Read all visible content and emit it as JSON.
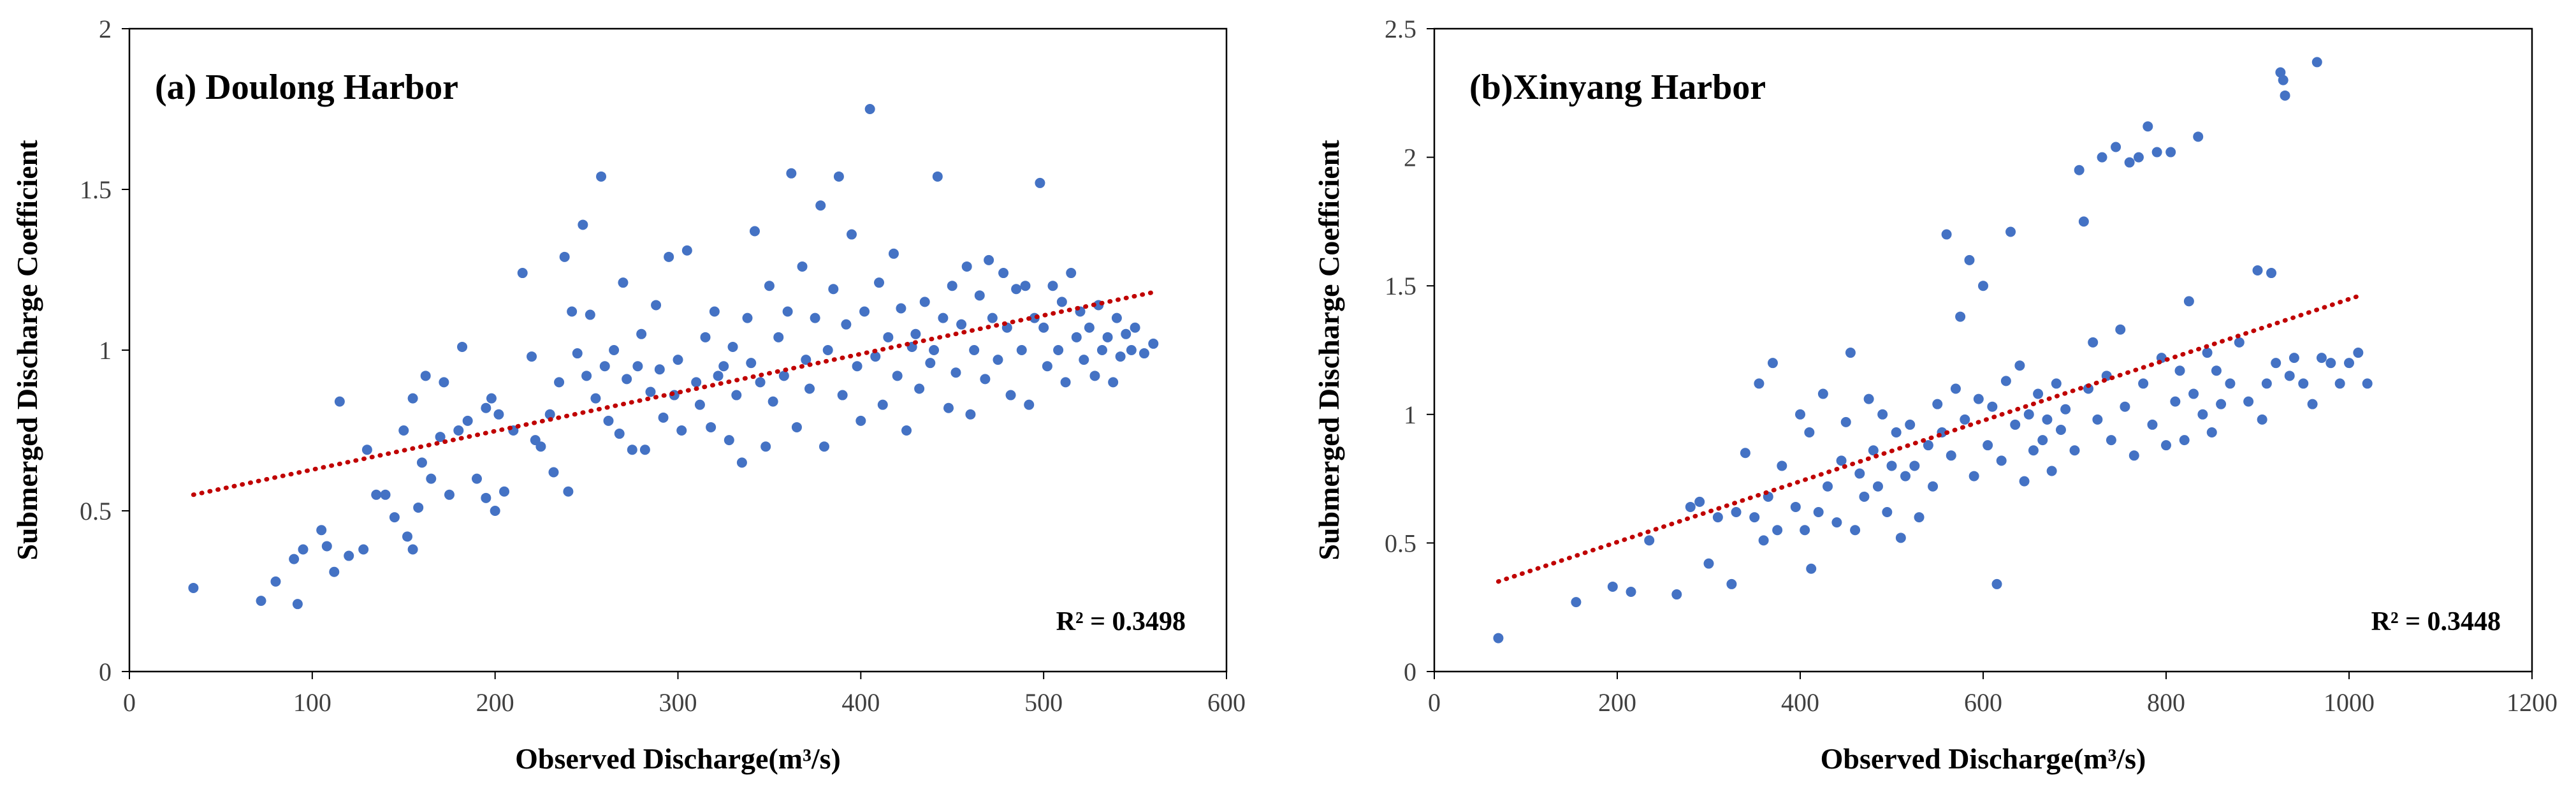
{
  "chart_data": [
    {
      "type": "scatter",
      "title": "(a) Doulong Harbor",
      "xlabel": "Observed Discharge(m³/s)",
      "ylabel": "Submerged Discharge Coefficient",
      "xlim": [
        0,
        600
      ],
      "ylim": [
        0,
        2
      ],
      "xticks": [
        "0",
        "100",
        "200",
        "300",
        "400",
        "500",
        "600"
      ],
      "yticks": [
        "0",
        "0.5",
        "1",
        "1.5",
        "2"
      ],
      "r2_label": "R² = 0.3498",
      "trendline": {
        "x": [
          35,
          560
        ],
        "y": [
          0.55,
          1.18
        ]
      },
      "point_color": "#4472C4",
      "trend_color": "#C00000",
      "points": [
        [
          35,
          0.26
        ],
        [
          72,
          0.22
        ],
        [
          80,
          0.28
        ],
        [
          90,
          0.35
        ],
        [
          92,
          0.21
        ],
        [
          95,
          0.38
        ],
        [
          105,
          0.44
        ],
        [
          108,
          0.39
        ],
        [
          112,
          0.31
        ],
        [
          115,
          0.84
        ],
        [
          120,
          0.36
        ],
        [
          128,
          0.38
        ],
        [
          130,
          0.69
        ],
        [
          135,
          0.55
        ],
        [
          140,
          0.55
        ],
        [
          145,
          0.48
        ],
        [
          150,
          0.75
        ],
        [
          152,
          0.42
        ],
        [
          155,
          0.38
        ],
        [
          155,
          0.85
        ],
        [
          158,
          0.51
        ],
        [
          160,
          0.65
        ],
        [
          162,
          0.92
        ],
        [
          165,
          0.6
        ],
        [
          170,
          0.73
        ],
        [
          172,
          0.9
        ],
        [
          175,
          0.55
        ],
        [
          180,
          0.75
        ],
        [
          182,
          1.01
        ],
        [
          185,
          0.78
        ],
        [
          190,
          0.6
        ],
        [
          195,
          0.82
        ],
        [
          195,
          0.54
        ],
        [
          198,
          0.85
        ],
        [
          200,
          0.5
        ],
        [
          202,
          0.8
        ],
        [
          205,
          0.56
        ],
        [
          210,
          0.75
        ],
        [
          215,
          1.24
        ],
        [
          220,
          0.98
        ],
        [
          222,
          0.72
        ],
        [
          225,
          0.7
        ],
        [
          230,
          0.8
        ],
        [
          232,
          0.62
        ],
        [
          235,
          0.9
        ],
        [
          238,
          1.29
        ],
        [
          240,
          0.56
        ],
        [
          242,
          1.12
        ],
        [
          245,
          0.99
        ],
        [
          248,
          1.39
        ],
        [
          250,
          0.92
        ],
        [
          252,
          1.11
        ],
        [
          255,
          0.85
        ],
        [
          258,
          1.54
        ],
        [
          260,
          0.95
        ],
        [
          262,
          0.78
        ],
        [
          265,
          1.0
        ],
        [
          268,
          0.74
        ],
        [
          270,
          1.21
        ],
        [
          272,
          0.91
        ],
        [
          275,
          0.69
        ],
        [
          278,
          0.95
        ],
        [
          280,
          1.05
        ],
        [
          282,
          0.69
        ],
        [
          285,
          0.87
        ],
        [
          288,
          1.14
        ],
        [
          290,
          0.94
        ],
        [
          292,
          0.79
        ],
        [
          295,
          1.29
        ],
        [
          298,
          0.86
        ],
        [
          300,
          0.97
        ],
        [
          302,
          0.75
        ],
        [
          305,
          1.31
        ],
        [
          310,
          0.9
        ],
        [
          312,
          0.83
        ],
        [
          315,
          1.04
        ],
        [
          318,
          0.76
        ],
        [
          320,
          1.12
        ],
        [
          322,
          0.92
        ],
        [
          325,
          0.95
        ],
        [
          328,
          0.72
        ],
        [
          330,
          1.01
        ],
        [
          332,
          0.86
        ],
        [
          335,
          0.65
        ],
        [
          338,
          1.1
        ],
        [
          340,
          0.96
        ],
        [
          342,
          1.37
        ],
        [
          345,
          0.9
        ],
        [
          348,
          0.7
        ],
        [
          350,
          1.2
        ],
        [
          352,
          0.84
        ],
        [
          355,
          1.04
        ],
        [
          358,
          0.92
        ],
        [
          360,
          1.12
        ],
        [
          362,
          1.55
        ],
        [
          365,
          0.76
        ],
        [
          368,
          1.26
        ],
        [
          370,
          0.97
        ],
        [
          372,
          0.88
        ],
        [
          375,
          1.1
        ],
        [
          378,
          1.45
        ],
        [
          380,
          0.7
        ],
        [
          382,
          1.0
        ],
        [
          385,
          1.19
        ],
        [
          388,
          1.54
        ],
        [
          390,
          0.86
        ],
        [
          392,
          1.08
        ],
        [
          395,
          1.36
        ],
        [
          398,
          0.95
        ],
        [
          400,
          0.78
        ],
        [
          402,
          1.12
        ],
        [
          405,
          1.75
        ],
        [
          408,
          0.98
        ],
        [
          410,
          1.21
        ],
        [
          412,
          0.83
        ],
        [
          415,
          1.04
        ],
        [
          418,
          1.3
        ],
        [
          420,
          0.92
        ],
        [
          422,
          1.13
        ],
        [
          425,
          0.75
        ],
        [
          428,
          1.01
        ],
        [
          430,
          1.05
        ],
        [
          432,
          0.88
        ],
        [
          435,
          1.15
        ],
        [
          438,
          0.96
        ],
        [
          440,
          1.0
        ],
        [
          442,
          1.54
        ],
        [
          445,
          1.1
        ],
        [
          448,
          0.82
        ],
        [
          450,
          1.2
        ],
        [
          452,
          0.93
        ],
        [
          455,
          1.08
        ],
        [
          458,
          1.26
        ],
        [
          460,
          0.8
        ],
        [
          462,
          1.0
        ],
        [
          465,
          1.17
        ],
        [
          468,
          0.91
        ],
        [
          470,
          1.28
        ],
        [
          472,
          1.1
        ],
        [
          475,
          0.97
        ],
        [
          478,
          1.24
        ],
        [
          480,
          1.07
        ],
        [
          482,
          0.86
        ],
        [
          485,
          1.19
        ],
        [
          488,
          1.0
        ],
        [
          490,
          1.2
        ],
        [
          492,
          0.83
        ],
        [
          495,
          1.1
        ],
        [
          498,
          1.52
        ],
        [
          500,
          1.07
        ],
        [
          502,
          0.95
        ],
        [
          505,
          1.2
        ],
        [
          508,
          1.0
        ],
        [
          510,
          1.15
        ],
        [
          512,
          0.9
        ],
        [
          515,
          1.24
        ],
        [
          518,
          1.04
        ],
        [
          520,
          1.12
        ],
        [
          522,
          0.97
        ],
        [
          525,
          1.07
        ],
        [
          528,
          0.92
        ],
        [
          530,
          1.14
        ],
        [
          532,
          1.0
        ],
        [
          535,
          1.04
        ],
        [
          538,
          0.9
        ],
        [
          540,
          1.1
        ],
        [
          542,
          0.98
        ],
        [
          545,
          1.05
        ],
        [
          548,
          1.0
        ],
        [
          550,
          1.07
        ],
        [
          555,
          0.99
        ],
        [
          560,
          1.02
        ]
      ]
    },
    {
      "type": "scatter",
      "title": "(b)Xinyang Harbor",
      "xlabel": "Observed Discharge(m³/s)",
      "ylabel": "Submerged Discharge Coefficient",
      "xlim": [
        0,
        1200
      ],
      "ylim": [
        0,
        2.5
      ],
      "xticks": [
        "0",
        "200",
        "400",
        "600",
        "800",
        "1000",
        "1200"
      ],
      "yticks": [
        "0",
        "0.5",
        "1",
        "1.5",
        "2",
        "2.5"
      ],
      "r2_label": "R² = 0.3448",
      "trendline": {
        "x": [
          70,
          1010
        ],
        "y": [
          0.35,
          1.46
        ]
      },
      "point_color": "#4472C4",
      "trend_color": "#C00000",
      "points": [
        [
          70,
          0.13
        ],
        [
          155,
          0.27
        ],
        [
          195,
          0.33
        ],
        [
          215,
          0.31
        ],
        [
          235,
          0.51
        ],
        [
          265,
          0.3
        ],
        [
          280,
          0.64
        ],
        [
          290,
          0.66
        ],
        [
          300,
          0.42
        ],
        [
          310,
          0.6
        ],
        [
          325,
          0.34
        ],
        [
          330,
          0.62
        ],
        [
          340,
          0.85
        ],
        [
          350,
          0.6
        ],
        [
          355,
          1.12
        ],
        [
          360,
          0.51
        ],
        [
          365,
          0.68
        ],
        [
          370,
          1.2
        ],
        [
          375,
          0.55
        ],
        [
          380,
          0.8
        ],
        [
          395,
          0.64
        ],
        [
          400,
          1.0
        ],
        [
          405,
          0.55
        ],
        [
          410,
          0.93
        ],
        [
          412,
          0.4
        ],
        [
          420,
          0.62
        ],
        [
          425,
          1.08
        ],
        [
          430,
          0.72
        ],
        [
          440,
          0.58
        ],
        [
          445,
          0.82
        ],
        [
          450,
          0.97
        ],
        [
          455,
          1.24
        ],
        [
          460,
          0.55
        ],
        [
          465,
          0.77
        ],
        [
          470,
          0.68
        ],
        [
          475,
          1.06
        ],
        [
          480,
          0.86
        ],
        [
          485,
          0.72
        ],
        [
          490,
          1.0
        ],
        [
          495,
          0.62
        ],
        [
          500,
          0.8
        ],
        [
          505,
          0.93
        ],
        [
          510,
          0.52
        ],
        [
          515,
          0.76
        ],
        [
          520,
          0.96
        ],
        [
          525,
          0.8
        ],
        [
          530,
          0.6
        ],
        [
          540,
          0.88
        ],
        [
          545,
          0.72
        ],
        [
          550,
          1.04
        ],
        [
          555,
          0.93
        ],
        [
          560,
          1.7
        ],
        [
          565,
          0.84
        ],
        [
          570,
          1.1
        ],
        [
          575,
          1.38
        ],
        [
          580,
          0.98
        ],
        [
          585,
          1.6
        ],
        [
          590,
          0.76
        ],
        [
          595,
          1.06
        ],
        [
          600,
          1.5
        ],
        [
          605,
          0.88
        ],
        [
          610,
          1.03
        ],
        [
          615,
          0.34
        ],
        [
          620,
          0.82
        ],
        [
          625,
          1.13
        ],
        [
          630,
          1.71
        ],
        [
          635,
          0.96
        ],
        [
          640,
          1.19
        ],
        [
          645,
          0.74
        ],
        [
          650,
          1.0
        ],
        [
          655,
          0.86
        ],
        [
          660,
          1.08
        ],
        [
          665,
          0.9
        ],
        [
          670,
          0.98
        ],
        [
          675,
          0.78
        ],
        [
          680,
          1.12
        ],
        [
          685,
          0.94
        ],
        [
          690,
          1.02
        ],
        [
          700,
          0.86
        ],
        [
          705,
          1.95
        ],
        [
          710,
          1.75
        ],
        [
          715,
          1.1
        ],
        [
          720,
          1.28
        ],
        [
          725,
          0.98
        ],
        [
          730,
          2.0
        ],
        [
          735,
          1.15
        ],
        [
          740,
          0.9
        ],
        [
          745,
          2.04
        ],
        [
          750,
          1.33
        ],
        [
          755,
          1.03
        ],
        [
          760,
          1.98
        ],
        [
          765,
          0.84
        ],
        [
          770,
          2.0
        ],
        [
          775,
          1.12
        ],
        [
          780,
          2.12
        ],
        [
          785,
          0.96
        ],
        [
          790,
          2.02
        ],
        [
          795,
          1.22
        ],
        [
          800,
          0.88
        ],
        [
          805,
          2.02
        ],
        [
          810,
          1.05
        ],
        [
          815,
          1.17
        ],
        [
          820,
          0.9
        ],
        [
          825,
          1.44
        ],
        [
          830,
          1.08
        ],
        [
          835,
          2.08
        ],
        [
          840,
          1.0
        ],
        [
          845,
          1.24
        ],
        [
          850,
          0.93
        ],
        [
          855,
          1.17
        ],
        [
          860,
          1.04
        ],
        [
          870,
          1.12
        ],
        [
          880,
          1.28
        ],
        [
          890,
          1.05
        ],
        [
          900,
          1.56
        ],
        [
          905,
          0.98
        ],
        [
          910,
          1.12
        ],
        [
          915,
          1.55
        ],
        [
          920,
          1.2
        ],
        [
          925,
          2.33
        ],
        [
          928,
          2.3
        ],
        [
          930,
          2.24
        ],
        [
          935,
          1.15
        ],
        [
          940,
          1.22
        ],
        [
          950,
          1.12
        ],
        [
          960,
          1.04
        ],
        [
          965,
          2.37
        ],
        [
          970,
          1.22
        ],
        [
          980,
          1.2
        ],
        [
          990,
          1.12
        ],
        [
          1000,
          1.2
        ],
        [
          1010,
          1.24
        ],
        [
          1020,
          1.12
        ]
      ]
    }
  ]
}
